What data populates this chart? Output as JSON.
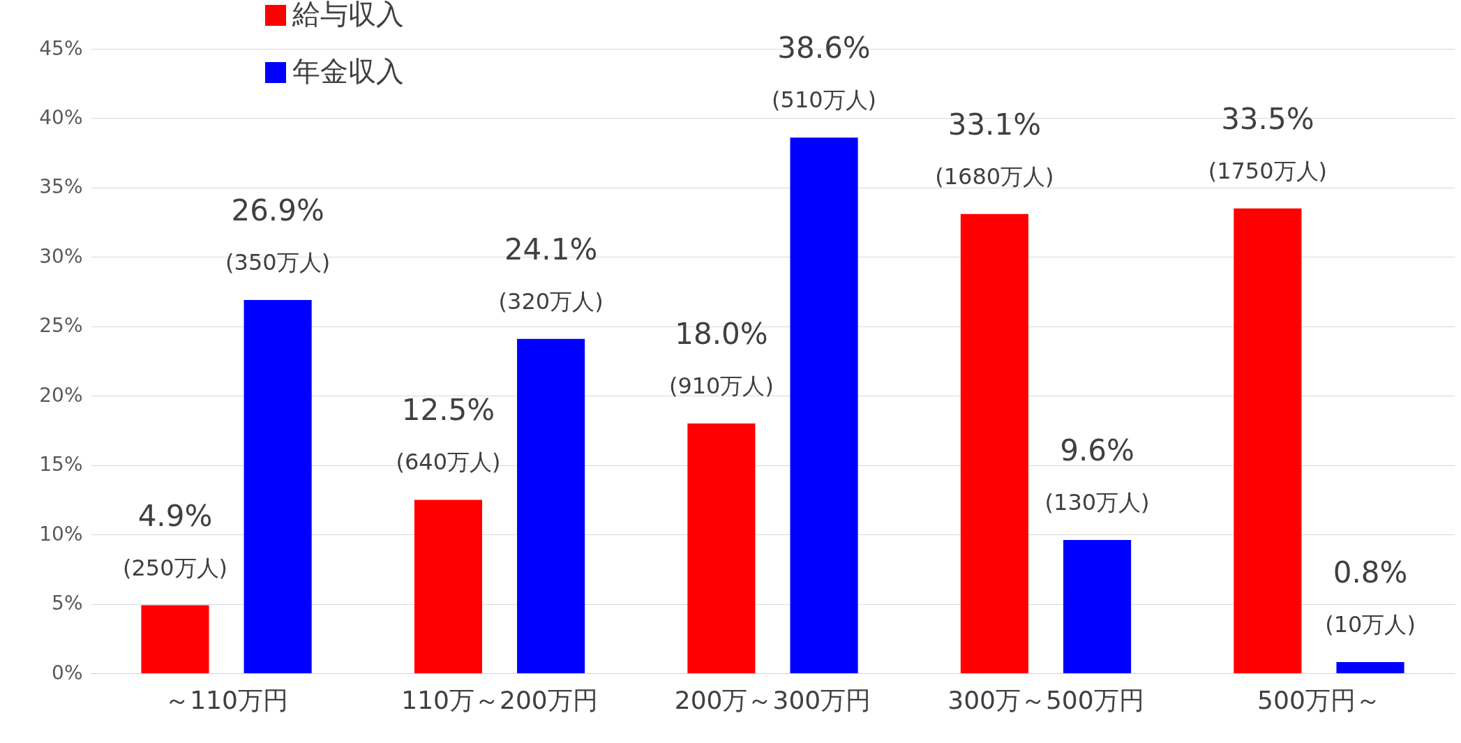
{
  "chart_data": {
    "type": "bar",
    "categories": [
      "～110万円",
      "110万～200万円",
      "200万～300万円",
      "300万～500万円",
      "500万円～"
    ],
    "series": [
      {
        "name": "給与収入",
        "color": "#ff0000",
        "values": [
          4.9,
          12.5,
          18.0,
          33.1,
          33.5
        ],
        "value_labels": [
          "4.9%\n(250万人)",
          "12.5%\n(640万人)",
          "18.0%\n(910万人)",
          "33.1%\n(1680万人)",
          "33.5%\n(1750万人)"
        ]
      },
      {
        "name": "年金収入",
        "color": "#0000ff",
        "values": [
          26.9,
          24.1,
          38.6,
          9.6,
          0.8
        ],
        "value_labels": [
          "26.9%\n(350万人)",
          "24.1%\n(320万人)",
          "38.6%\n(510万人)",
          "9.6%\n(130万人)",
          "0.8%\n(10万人)"
        ]
      }
    ],
    "ylim": [
      0,
      45
    ],
    "yticks": [
      {
        "value": 0,
        "label": "0%"
      },
      {
        "value": 5,
        "label": "5%"
      },
      {
        "value": 10,
        "label": "10%"
      },
      {
        "value": 15,
        "label": "15%"
      },
      {
        "value": 20,
        "label": "20%"
      },
      {
        "value": 25,
        "label": "25%"
      },
      {
        "value": 30,
        "label": "30%"
      },
      {
        "value": 35,
        "label": "35%"
      },
      {
        "value": 40,
        "label": "40%"
      },
      {
        "value": 45,
        "label": "45%"
      }
    ],
    "grid": "y",
    "legend": "top left"
  }
}
